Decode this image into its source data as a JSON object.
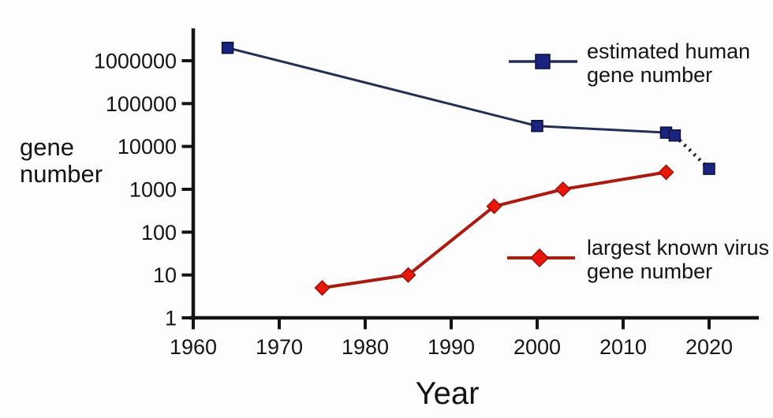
{
  "figure": {
    "y_axis_label_line1": "gene",
    "y_axis_label_line2": "number",
    "x_axis_label": "Year"
  },
  "legend": {
    "human": {
      "line1": "estimated human",
      "line2": "gene number"
    },
    "virus": {
      "line1": "largest known virus",
      "line2": "gene number"
    }
  },
  "colors": {
    "axis": "#141414",
    "human_line": "#252e54",
    "human_marker": "#1b2380",
    "human_marker_edge": "#0c1234",
    "projection_dotted": "#1a1a2e",
    "virus_line": "#a81c12",
    "virus_marker": "#e8190c",
    "virus_marker_edge": "#8f150c"
  },
  "chart_data": {
    "type": "line",
    "title": "",
    "xlabel": "Year",
    "ylabel": "gene number",
    "x_axis": {
      "ticks": [
        1960,
        1970,
        1980,
        1990,
        2000,
        2010,
        2020
      ],
      "range": [
        1960,
        2025.8
      ],
      "grid": false
    },
    "y_axis": {
      "scale": "log",
      "ticks": [
        1,
        10,
        100,
        1000,
        10000,
        100000,
        1000000
      ],
      "tick_labels": [
        "1",
        "10",
        "100",
        "1000",
        "10000",
        "100000",
        "1000000"
      ],
      "range": [
        1,
        5000000
      ],
      "grid": false
    },
    "legend_position": "inside-right",
    "series": [
      {
        "id": "human",
        "name": "estimated human gene number",
        "marker": "square",
        "line_style": "solid",
        "points": [
          {
            "year": 1964,
            "value": 2000000
          },
          {
            "year": 2000,
            "value": 30000
          },
          {
            "year": 2015,
            "value": 21000
          },
          {
            "year": 2016,
            "value": 18000
          }
        ],
        "projection": {
          "line_style": "dotted",
          "points": [
            {
              "year": 2016,
              "value": 18000
            },
            {
              "year": 2020,
              "value": 3000
            }
          ]
        }
      },
      {
        "id": "virus",
        "name": "largest known virus gene number",
        "marker": "diamond",
        "line_style": "solid",
        "points": [
          {
            "year": 1975,
            "value": 5
          },
          {
            "year": 1985,
            "value": 10
          },
          {
            "year": 1995,
            "value": 400
          },
          {
            "year": 2003,
            "value": 1000
          },
          {
            "year": 2015,
            "value": 2500
          }
        ]
      }
    ]
  }
}
